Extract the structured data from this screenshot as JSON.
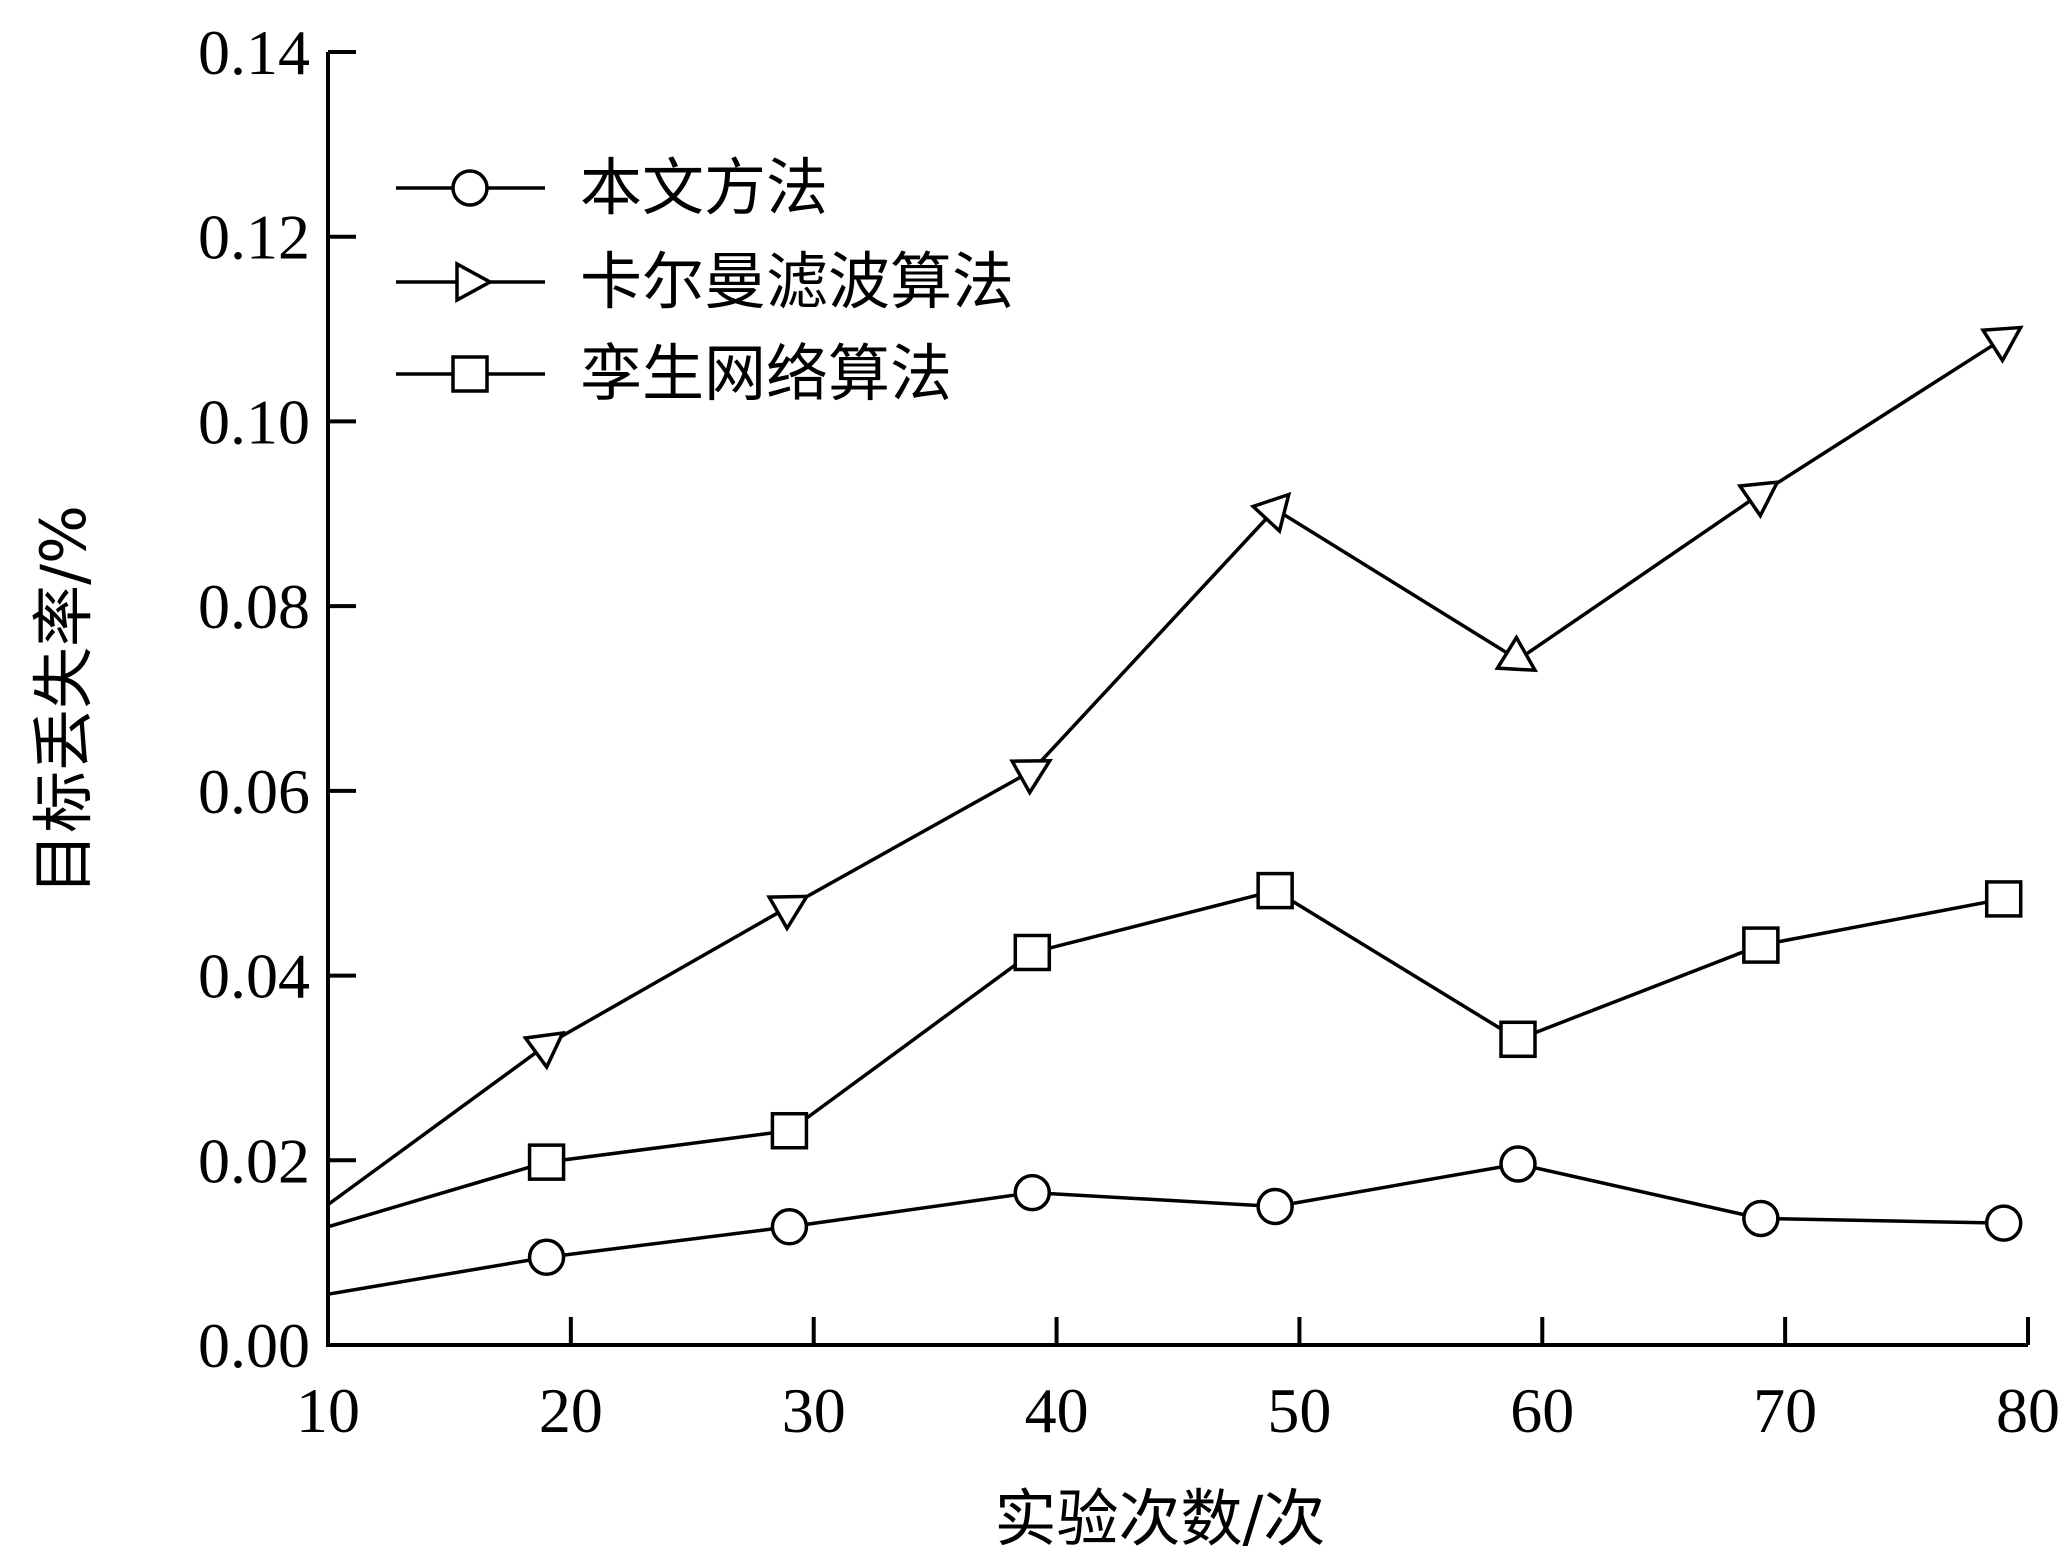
{
  "chart_data": {
    "type": "line",
    "title": "",
    "xlabel": "实验次数/次",
    "ylabel": "目标丢失率/%",
    "xlim": [
      10,
      80
    ],
    "ylim": [
      0,
      0.14
    ],
    "xticks": [
      "10",
      "20",
      "30",
      "40",
      "50",
      "60",
      "70",
      "80"
    ],
    "yticks": [
      "0.00",
      "0.02",
      "0.04",
      "0.06",
      "0.08",
      "0.10",
      "0.12",
      "0.14"
    ],
    "grid": false,
    "legend_position": "top-left",
    "series": [
      {
        "name": "本文方法",
        "marker": "circle",
        "x": [
          10,
          19,
          29,
          39,
          49,
          59,
          69,
          79
        ],
        "y": [
          0.0055,
          0.0095,
          0.0128,
          0.0165,
          0.015,
          0.0196,
          0.0137,
          0.0132
        ]
      },
      {
        "name": "卡尔曼滤波算法",
        "marker": "triangle-right",
        "x": [
          10,
          19,
          29,
          39,
          49,
          59,
          69,
          79
        ],
        "y": [
          0.0152,
          0.0325,
          0.0475,
          0.0622,
          0.0905,
          0.0742,
          0.0922,
          0.109
        ]
      },
      {
        "name": "孪生网络算法",
        "marker": "square",
        "x": [
          10,
          19,
          29,
          39,
          49,
          59,
          69,
          79
        ],
        "y": [
          0.0128,
          0.0198,
          0.0232,
          0.0425,
          0.0492,
          0.0331,
          0.0433,
          0.0483
        ]
      }
    ]
  }
}
